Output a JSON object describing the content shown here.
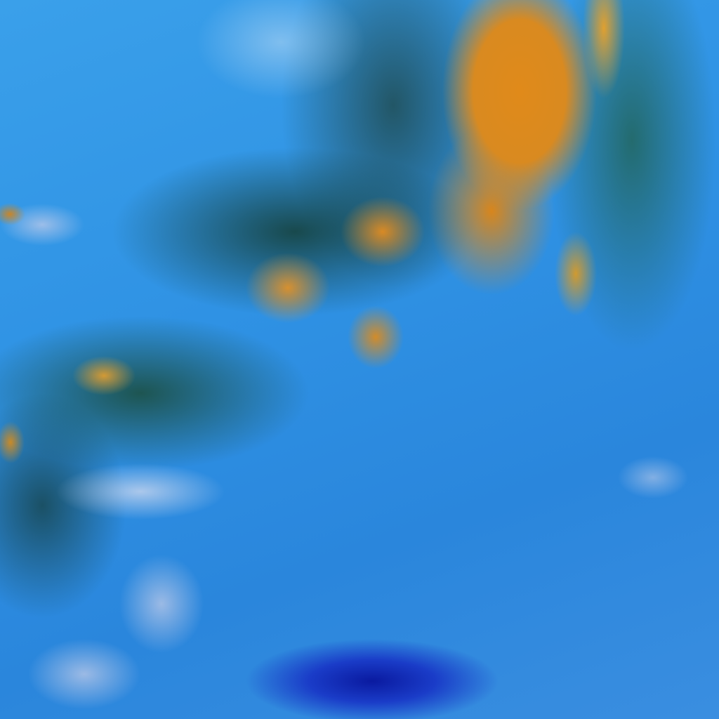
{
  "image": {
    "colors": {
      "clear_background": "#2f8fe0",
      "high_cloud": "#e08a1a",
      "mid_cloud": "#1e4a3c",
      "low_cloud": "#e1e1f0",
      "deep_spot": "#0a1aa0"
    }
  }
}
